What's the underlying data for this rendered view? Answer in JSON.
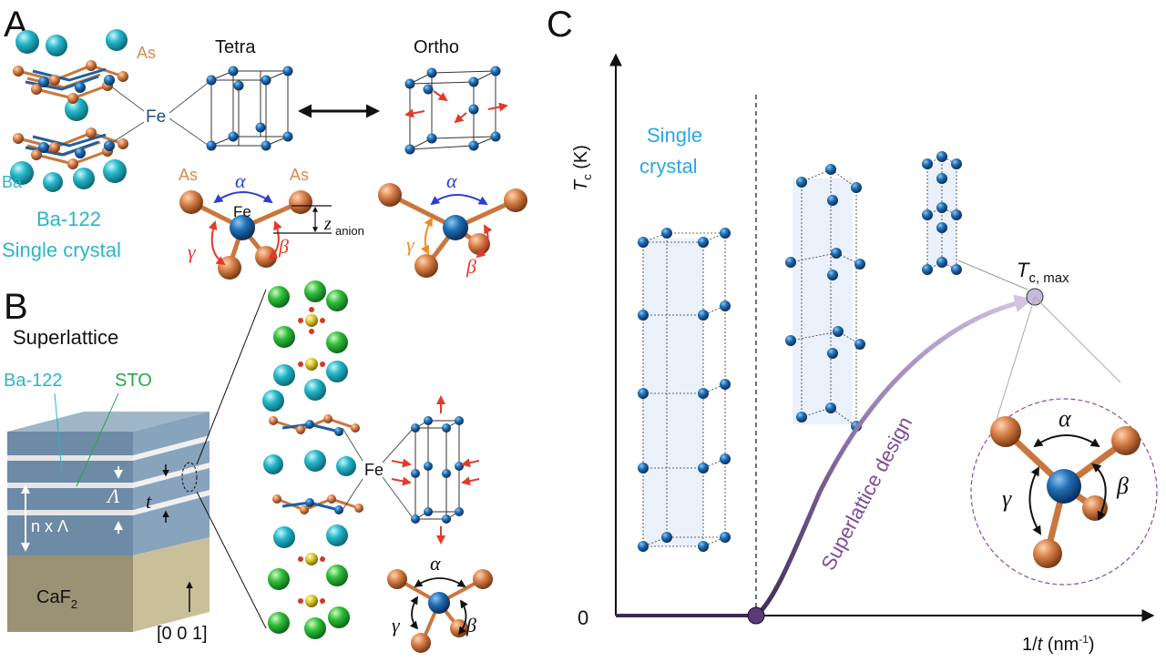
{
  "panels": {
    "A": {
      "letter": "A",
      "tetra_label": "Tetra",
      "ortho_label": "Ortho",
      "fe_label": "Fe",
      "as_label": "As",
      "ba_label": "Ba",
      "material": "Ba-122",
      "form": "Single crystal",
      "alpha": "α",
      "beta": "β",
      "gamma": "γ",
      "z_main": "z",
      "z_sub": "anion",
      "colors": {
        "fe": "#1f5f9e",
        "as": "#d98a4e",
        "ba": "#2bb5c8",
        "arrow": "#e23a2a",
        "alpha": "#2a3fd0"
      }
    },
    "B": {
      "letter": "B",
      "title": "Superlattice",
      "ba122_label": "Ba-122",
      "sto_label": "STO",
      "period_symbol": "Λ",
      "thickness_symbol": "t",
      "n_period_label": "n x Λ",
      "substrate_main": "CaF",
      "substrate_sub": "2",
      "direction": "[0 0 1]",
      "fe_label": "Fe",
      "alpha": "α",
      "beta": "β",
      "gamma": "γ",
      "colors": {
        "sto": "#22a84a",
        "ba122": "#2bb5c8",
        "substrate": "#b9b08a"
      }
    },
    "C": {
      "letter": "C",
      "y_axis_main": "T",
      "y_axis_sub": "c",
      "y_axis_unit": " (K)",
      "x_axis_prefix": "1/",
      "x_axis_var": "t",
      "x_axis_unit": " (nm",
      "x_axis_exp": "-1",
      "x_axis_close": ")",
      "origin_label": "0",
      "single_crystal_line1": "Single",
      "single_crystal_line2": "crystal",
      "design_label": "Superlattice design",
      "tc_max_main": "T",
      "tc_max_sub": "c, max",
      "alpha": "α",
      "beta": "β",
      "gamma": "γ",
      "colors": {
        "curve": "#5a3a7a",
        "accent": "#8e4aa0",
        "single_crystal": "#29a8e0"
      }
    }
  }
}
